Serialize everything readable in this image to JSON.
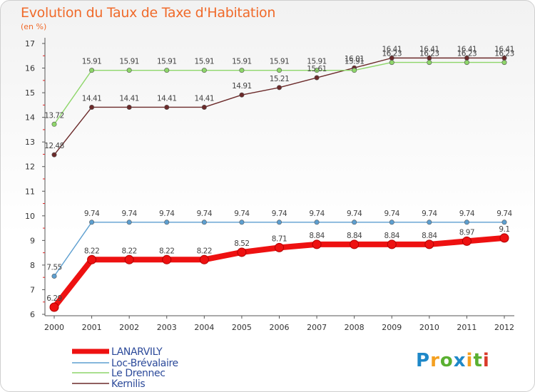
{
  "title": "Evolution du Taux de Taxe d'Habitation",
  "subtitle": "(en %)",
  "brand": {
    "letters": [
      "P",
      "r",
      "o",
      "x",
      "i",
      "t",
      "i"
    ],
    "colors": [
      "#1e88c8",
      "#f4a020",
      "#5ab031",
      "#1e88c8",
      "#f4a020",
      "#5ab031",
      "#d93a2a"
    ]
  },
  "chart_data": {
    "type": "line",
    "title": "Evolution du Taux de Taxe d'Habitation",
    "ylabel": "(en %)",
    "xlabel": "",
    "ylim": [
      6,
      17
    ],
    "yticks": [
      6,
      7,
      8,
      9,
      10,
      11,
      12,
      13,
      14,
      15,
      16,
      17
    ],
    "x": [
      "2000",
      "2001",
      "2002",
      "2003",
      "2004",
      "2005",
      "2006",
      "2007",
      "2008",
      "2009",
      "2010",
      "2011",
      "2012"
    ],
    "series": [
      {
        "name": "LANARVILY",
        "color": "#ee1111",
        "values": [
          6.29,
          8.22,
          8.22,
          8.22,
          8.22,
          8.52,
          8.71,
          8.84,
          8.84,
          8.84,
          8.84,
          8.97,
          9.1
        ],
        "labels": [
          "6.29",
          "8.22",
          "8.22",
          "8.22",
          "8.22",
          "8.52",
          "8.71",
          "8.84",
          "8.84",
          "8.84",
          "8.84",
          "8.97",
          "9.1"
        ]
      },
      {
        "name": "Loc-Brévalaire",
        "color": "#5d9fd0",
        "values": [
          7.55,
          9.74,
          9.74,
          9.74,
          9.74,
          9.74,
          9.74,
          9.74,
          9.74,
          9.74,
          9.74,
          9.74,
          9.74
        ],
        "labels": [
          "7.55",
          "9.74",
          "9.74",
          "9.74",
          "9.74",
          "9.74",
          "9.74",
          "9.74",
          "9.74",
          "9.74",
          "9.74",
          "9.74",
          "9.74"
        ]
      },
      {
        "name": "Le Drennec",
        "color": "#8ed66a",
        "values": [
          13.72,
          15.91,
          15.91,
          15.91,
          15.91,
          15.91,
          15.91,
          15.91,
          15.91,
          16.23,
          16.23,
          16.23,
          16.23
        ],
        "labels": [
          "13.72",
          "15.91",
          "15.91",
          "15.91",
          "15.91",
          "15.91",
          "15.91",
          "15.91",
          "15.91",
          "16.23",
          "16.23",
          "16.23",
          "16.23"
        ]
      },
      {
        "name": "Kernilis",
        "color": "#6b2a2a",
        "values": [
          12.48,
          14.41,
          14.41,
          14.41,
          14.41,
          14.91,
          15.21,
          15.61,
          16.01,
          16.41,
          16.41,
          16.41,
          16.41
        ],
        "labels": [
          "12.48",
          "14.41",
          "14.41",
          "14.41",
          "14.41",
          "14.91",
          "15.21",
          "15.61",
          "16.01",
          "16.41",
          "16.41",
          "16.41",
          "16.41"
        ]
      }
    ]
  }
}
